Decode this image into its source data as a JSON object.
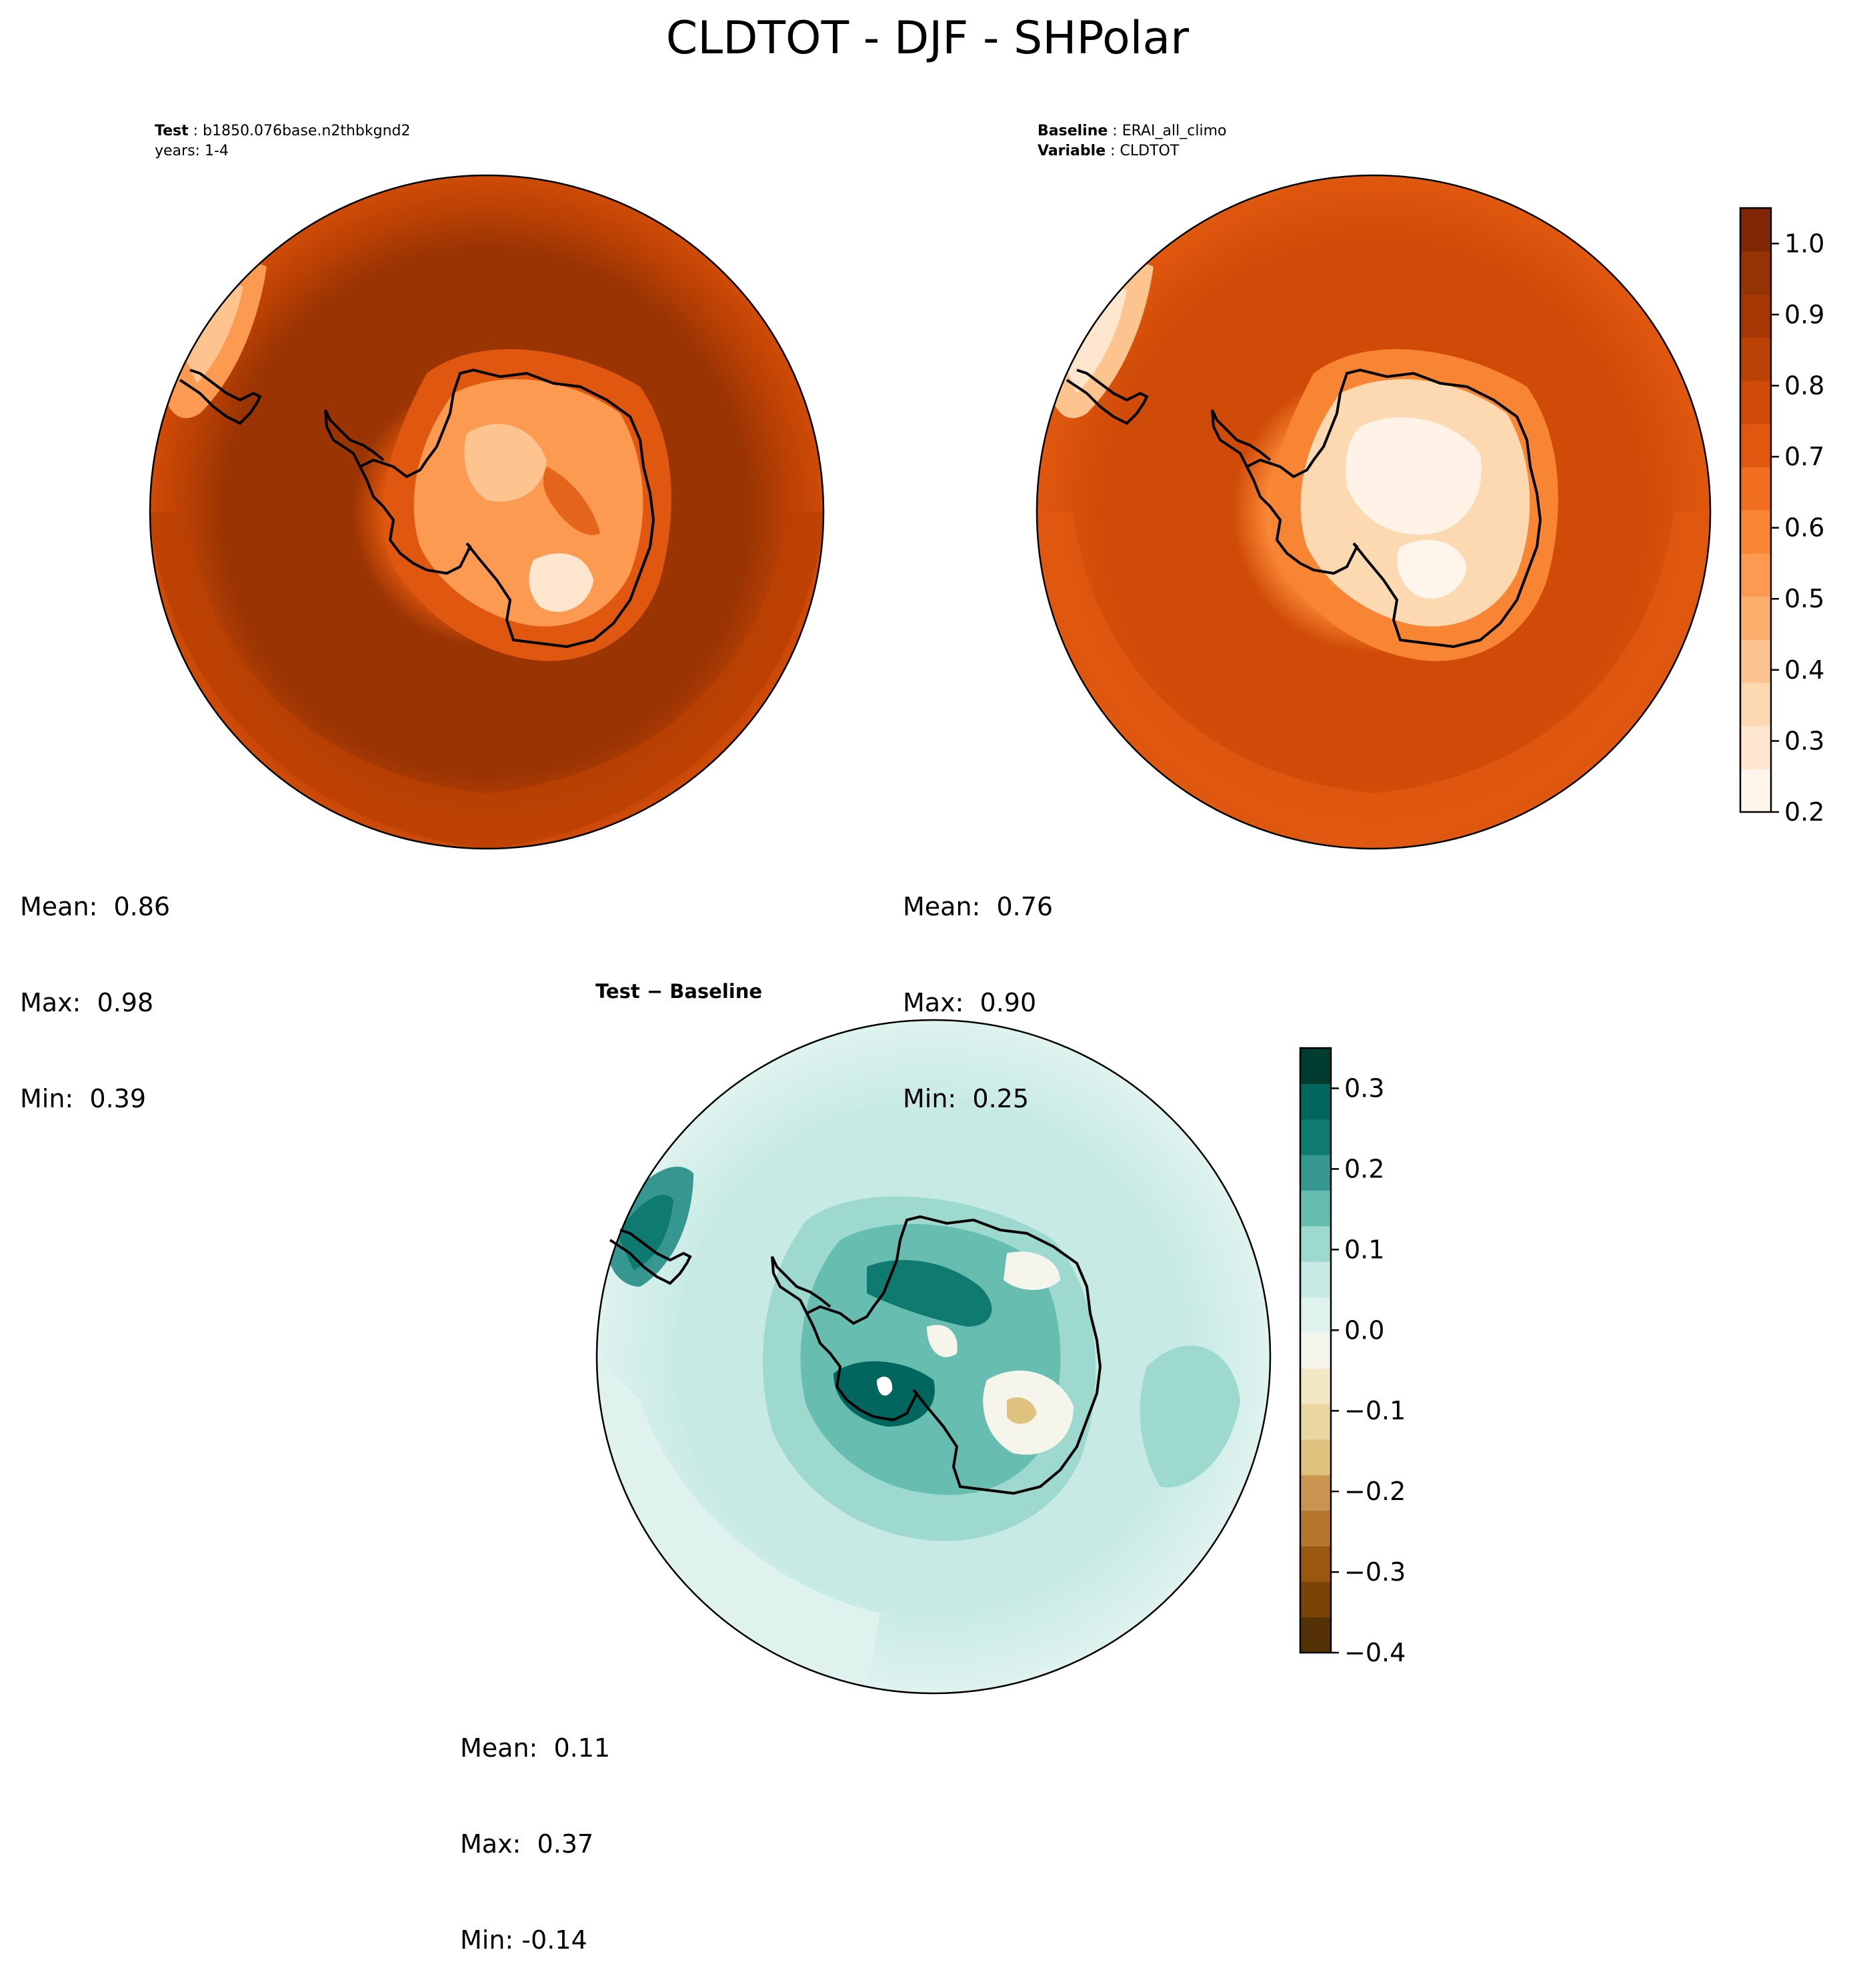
{
  "figure": {
    "title": "CLDTOT - DJF - SHPolar"
  },
  "panels": {
    "test": {
      "label_key": "Test",
      "label_value": "b1850.076base.n2thbkgnd2",
      "years": "years: 1-4",
      "stats": {
        "mean": "Mean:  0.86",
        "max": "Max:  0.98",
        "min": "Min:  0.39"
      }
    },
    "baseline": {
      "label_key": "Baseline",
      "label_value": "ERAI_all_climo",
      "variable_key": "Variable",
      "variable_value": "CLDTOT",
      "stats": {
        "mean": "Mean:  0.76",
        "max": "Max:  0.90",
        "min": "Min:  0.25"
      }
    },
    "diff": {
      "title": "Test − Baseline",
      "stats": {
        "mean": "Mean:  0.11",
        "max": "Max:  0.37",
        "min": "Min: -0.14"
      }
    }
  },
  "colorbars": {
    "field": {
      "ticks": [
        "0.2",
        "0.3",
        "0.4",
        "0.5",
        "0.6",
        "0.7",
        "0.8",
        "0.9",
        "1.0"
      ],
      "range": [
        0.2,
        1.05
      ],
      "colors": [
        "#fff5eb",
        "#fee6ce",
        "#fdd9b2",
        "#fdc48f",
        "#fdae6b",
        "#fd9a51",
        "#f88533",
        "#ef6f1e",
        "#e0580f",
        "#cf4b07",
        "#bb4104",
        "#a63603",
        "#943303",
        "#7f2704"
      ]
    },
    "diff": {
      "ticks": [
        "−0.4",
        "−0.3",
        "−0.2",
        "−0.1",
        "0.0",
        "0.1",
        "0.2",
        "0.3"
      ],
      "range": [
        -0.4,
        0.35
      ],
      "colors": [
        "#543005",
        "#7a4407",
        "#995710",
        "#b5772c",
        "#c99550",
        "#dfc27d",
        "#ead6a0",
        "#f3e8c6",
        "#f5f5ec",
        "#dff2ee",
        "#c7eae5",
        "#9ed9cf",
        "#66bdb0",
        "#35978f",
        "#0f7a70",
        "#01665e",
        "#003c30"
      ]
    }
  },
  "map_colors": {
    "test": {
      "ocean_far": "#bb4104",
      "ocean": "#9a3403",
      "ice_edge": "#f88533",
      "ice_inner": "#fdae6b",
      "ice_core": "#fde0c0",
      "pacific": "#fd9a51"
    },
    "baseline": {
      "ocean_far": "#e0580f",
      "ocean": "#cf4b07",
      "ice_edge": "#f88533",
      "ice_inner": "#fdd9b2",
      "ice_core": "#fff2e6",
      "pacific": "#fee6ce"
    },
    "diff": {
      "ocean_far": "#dff2ee",
      "ocean": "#c7eae5",
      "ring": "#9ed9cf",
      "ice_mid": "#66bdb0",
      "ice_dark": "#0f7a70",
      "ice_light": "#f5f5ec",
      "tan": "#dfc27d"
    }
  }
}
